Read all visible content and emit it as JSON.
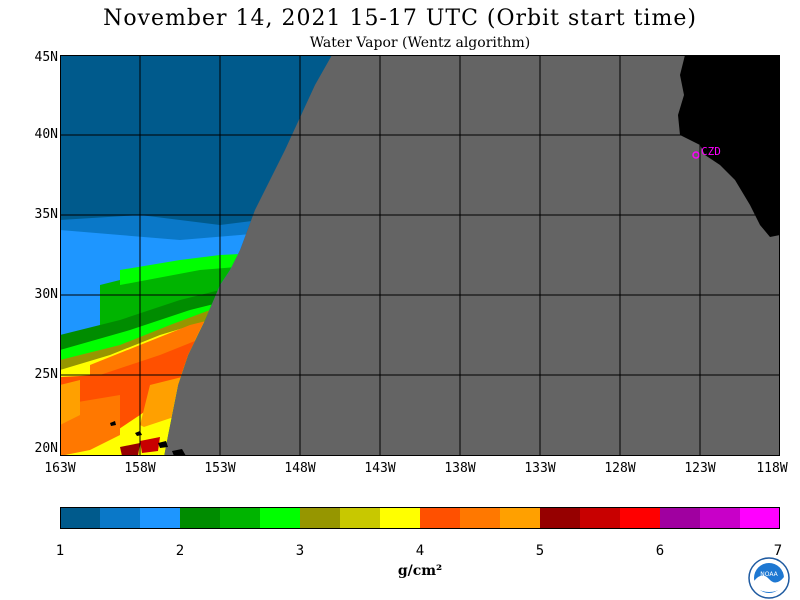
{
  "title": "November 14, 2021  15-17 UTC  (Orbit start time)",
  "subtitle": "Water Vapor (Wentz algorithm)",
  "lat_labels": [
    "45N",
    "40N",
    "35N",
    "30N",
    "25N",
    "20N"
  ],
  "lon_labels": [
    "163W",
    "158W",
    "153W",
    "148W",
    "143W",
    "138W",
    "133W",
    "128W",
    "123W",
    "118W"
  ],
  "station_label": "CZD",
  "colorbar": {
    "ticks": [
      "1",
      "2",
      "3",
      "4",
      "5",
      "6",
      "7"
    ],
    "units": "g/cm²",
    "colors": [
      "#005a8c",
      "#0a78c8",
      "#1e96ff",
      "#008c00",
      "#00b400",
      "#00ff00",
      "#969600",
      "#c8c800",
      "#ffff00",
      "#ff5000",
      "#ff7800",
      "#ffa000",
      "#960000",
      "#c80000",
      "#ff0000",
      "#a000a0",
      "#c800c8",
      "#ff00ff"
    ]
  },
  "map_colors": {
    "nodata": "#646464",
    "land": "#000000",
    "station": "#ff00ff"
  },
  "logo_text": "NOAA"
}
